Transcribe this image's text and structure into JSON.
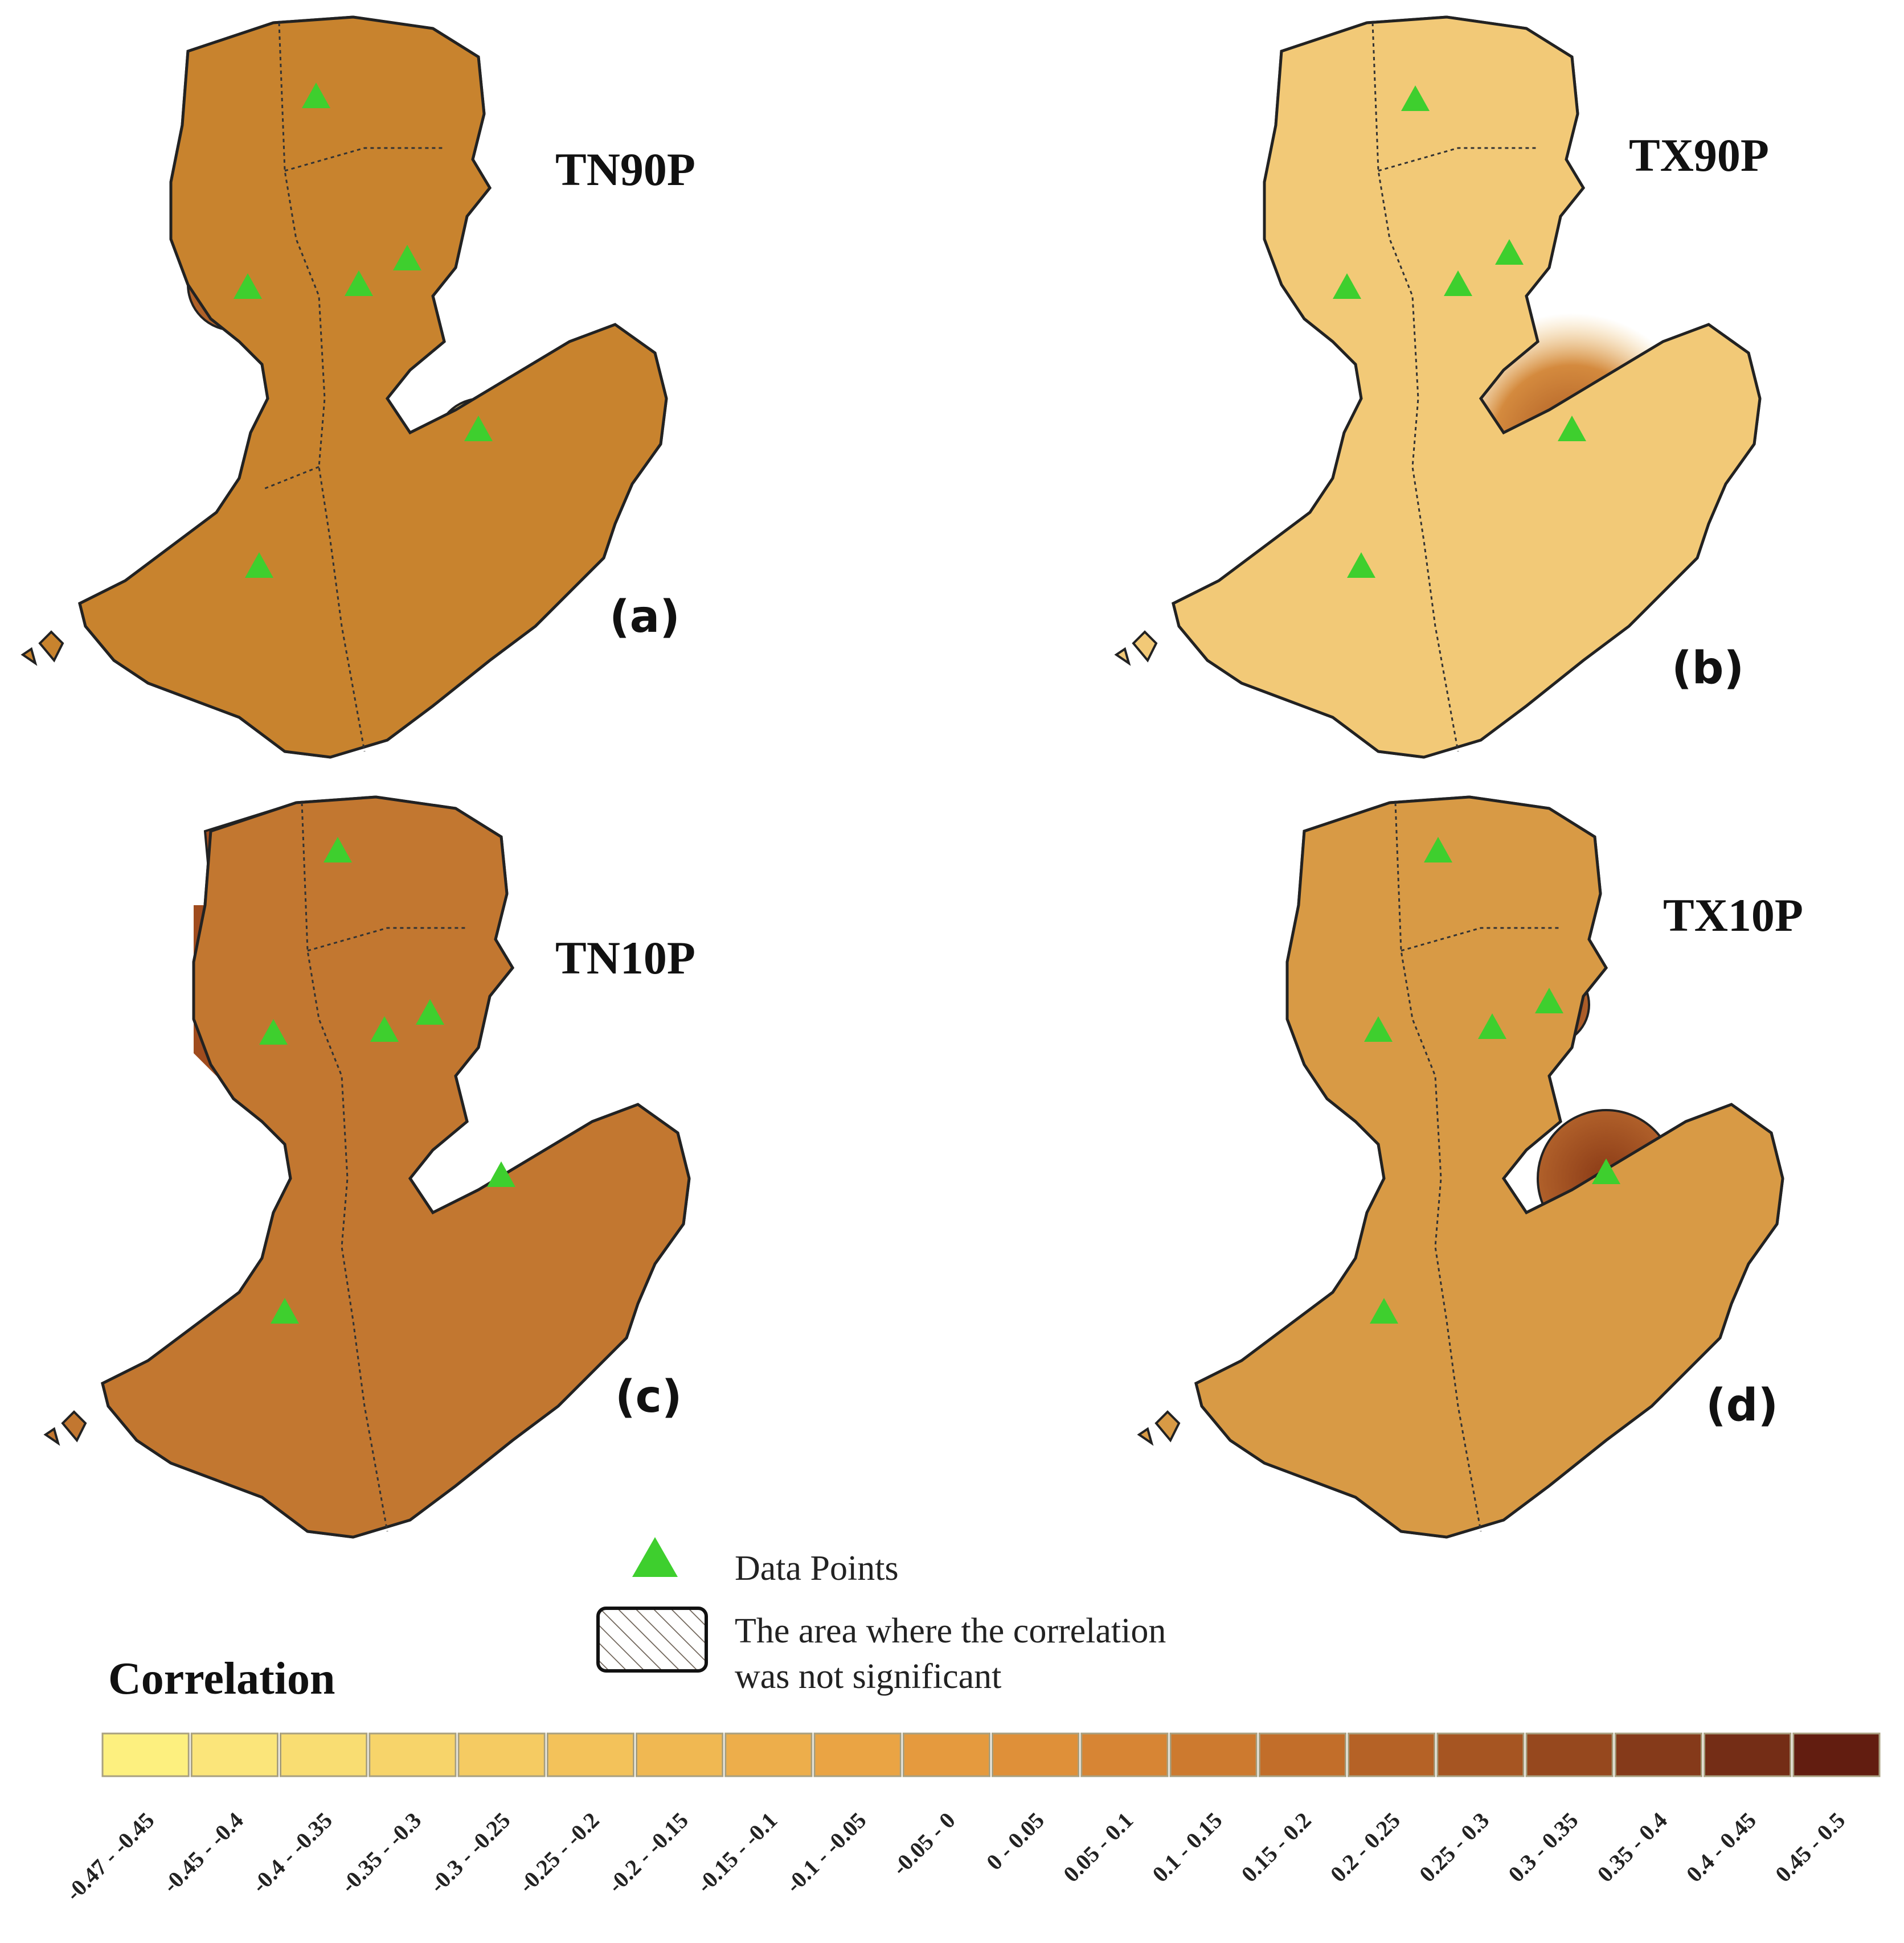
{
  "panels": [
    {
      "id": "a",
      "title": "TN90P",
      "letter": "(a)",
      "base_color": "#c8832e",
      "highlight_color": "#a4561c"
    },
    {
      "id": "b",
      "title": "TX90P",
      "letter": "(b)",
      "base_color": "#f2c977",
      "highlight_color": "#b86d28"
    },
    {
      "id": "c",
      "title": "TN10P",
      "letter": "(c)",
      "base_color": "#c27730",
      "highlight_color": "#8f3f17"
    },
    {
      "id": "d",
      "title": "TX10P",
      "letter": "(d)",
      "base_color": "#d89a45",
      "highlight_color": "#a0531c"
    }
  ],
  "legend": {
    "data_points_label": "Data Points",
    "not_significant_label_line1": "The area where the correlation",
    "not_significant_label_line2": "was not significant",
    "heading": "Correlation",
    "classes": [
      {
        "label": "-0.47 - -0.45",
        "color": "#fdf07f"
      },
      {
        "label": "-0.45 - -0.4",
        "color": "#fbe57a"
      },
      {
        "label": "-0.4 - -0.35",
        "color": "#f9dd72"
      },
      {
        "label": "-0.35 - -0.3",
        "color": "#f7d46a"
      },
      {
        "label": "-0.3 - -0.25",
        "color": "#f5cb62"
      },
      {
        "label": "-0.25 - -0.2",
        "color": "#f3c25a"
      },
      {
        "label": "-0.2 - -0.15",
        "color": "#f0b852"
      },
      {
        "label": "-0.15 - -0.1",
        "color": "#edae4b"
      },
      {
        "label": "-0.1 - -0.05",
        "color": "#eaa444"
      },
      {
        "label": "-0.05 - 0",
        "color": "#e59a3e"
      },
      {
        "label": "0 - 0.05",
        "color": "#df9039"
      },
      {
        "label": "0.05 - 0.1",
        "color": "#d78534"
      },
      {
        "label": "0.1 - 0.15",
        "color": "#cd7a2f"
      },
      {
        "label": "0.15 - 0.2",
        "color": "#c26e2a"
      },
      {
        "label": "0.2 - 0.25",
        "color": "#b56226"
      },
      {
        "label": "0.25 - 0.3",
        "color": "#a65522"
      },
      {
        "label": "0.3 - 0.35",
        "color": "#96481e"
      },
      {
        "label": "0.35 - 0.4",
        "color": "#853a1a"
      },
      {
        "label": "0.4 - 0.45",
        "color": "#742d16"
      },
      {
        "label": "0.45 - 0.5",
        "color": "#621d10"
      }
    ]
  },
  "colors": {
    "data_point": "#3ecf2e",
    "outline": "#222222",
    "hatch": "#3a2a1a"
  }
}
